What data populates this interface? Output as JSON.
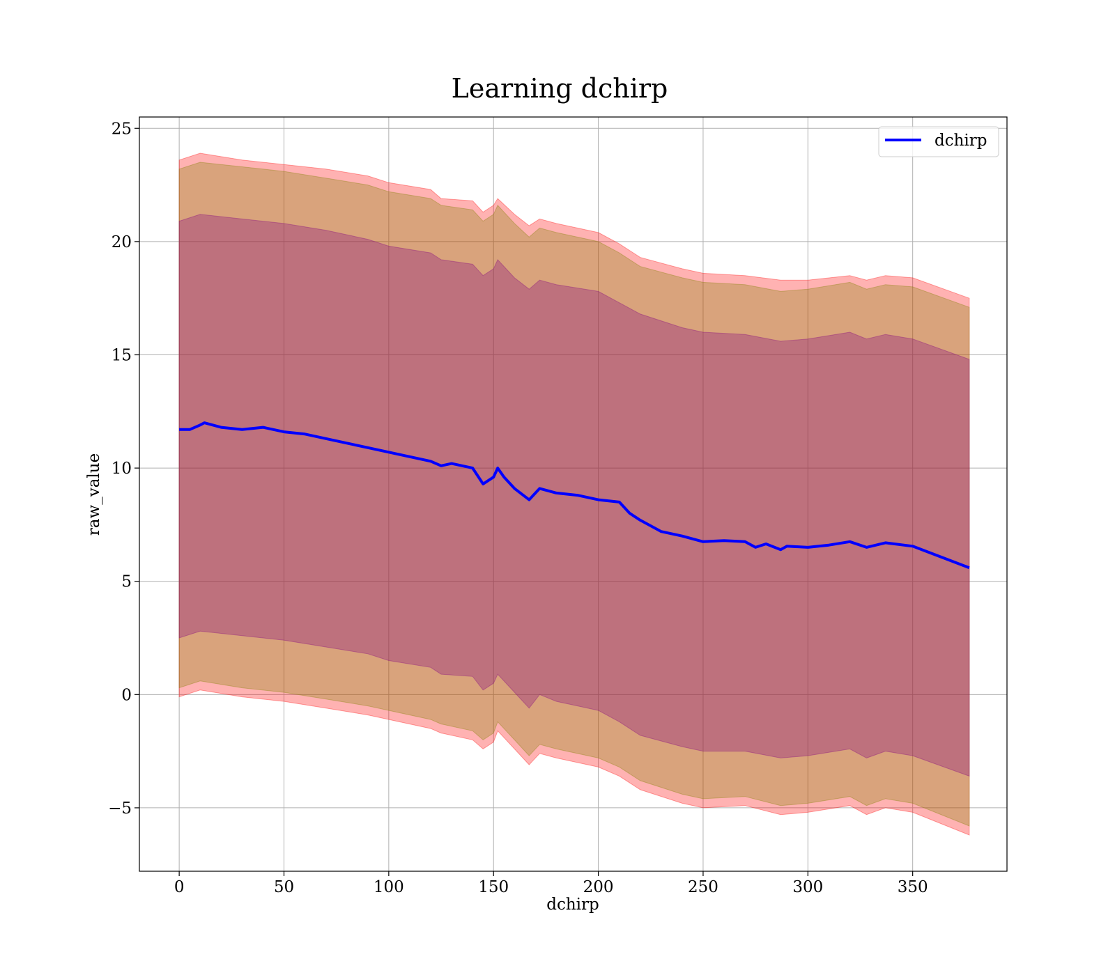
{
  "chart_data": {
    "type": "line",
    "title": "Learning dchirp",
    "xlabel": "dchirp",
    "ylabel": "raw_value",
    "xlim": [
      -19,
      395
    ],
    "ylim": [
      -7.8,
      25.5
    ],
    "xticks": [
      0,
      50,
      100,
      150,
      200,
      250,
      300,
      350
    ],
    "yticks": [
      -5,
      0,
      5,
      10,
      15,
      20,
      25
    ],
    "xtick_labels": [
      "0",
      "50",
      "100",
      "150",
      "200",
      "250",
      "300",
      "350"
    ],
    "ytick_labels": [
      "−5",
      "0",
      "5",
      "10",
      "15",
      "20",
      "25"
    ],
    "grid": true,
    "legend_position": "top-right",
    "series": [
      {
        "name": "dchirp",
        "color": "#0000ff",
        "x": [
          0,
          5,
          10,
          12,
          20,
          30,
          40,
          50,
          60,
          70,
          80,
          90,
          100,
          110,
          120,
          125,
          130,
          140,
          145,
          150,
          152,
          155,
          160,
          167,
          172,
          180,
          190,
          200,
          210,
          215,
          220,
          230,
          240,
          250,
          260,
          270,
          275,
          280,
          287,
          290,
          300,
          310,
          320,
          328,
          337,
          350,
          377
        ],
        "y": [
          11.7,
          11.7,
          11.9,
          12.0,
          11.8,
          11.7,
          11.8,
          11.6,
          11.5,
          11.3,
          11.1,
          10.9,
          10.7,
          10.5,
          10.3,
          10.1,
          10.2,
          10.0,
          9.3,
          9.6,
          10.0,
          9.6,
          9.1,
          8.6,
          9.1,
          8.9,
          8.8,
          8.6,
          8.5,
          8.0,
          7.7,
          7.2,
          7.0,
          6.75,
          6.8,
          6.75,
          6.5,
          6.65,
          6.4,
          6.55,
          6.5,
          6.6,
          6.75,
          6.5,
          6.7,
          6.55,
          5.6
        ]
      }
    ],
    "bands": [
      {
        "fill": "#ff0000",
        "opacity": 0.3,
        "x": [
          0,
          10,
          30,
          50,
          70,
          90,
          100,
          120,
          125,
          140,
          145,
          150,
          152,
          160,
          167,
          172,
          180,
          200,
          210,
          220,
          240,
          250,
          270,
          287,
          300,
          320,
          328,
          337,
          350,
          377
        ],
        "upper": [
          23.6,
          23.9,
          23.6,
          23.4,
          23.2,
          22.9,
          22.6,
          22.3,
          21.9,
          21.8,
          21.3,
          21.6,
          21.9,
          21.2,
          20.7,
          21.0,
          20.8,
          20.4,
          19.9,
          19.3,
          18.8,
          18.6,
          18.5,
          18.3,
          18.3,
          18.5,
          18.3,
          18.5,
          18.4,
          17.5
        ],
        "lower": [
          -0.1,
          0.2,
          -0.1,
          -0.3,
          -0.6,
          -0.9,
          -1.1,
          -1.5,
          -1.7,
          -2.0,
          -2.4,
          -2.1,
          -1.6,
          -2.4,
          -3.1,
          -2.6,
          -2.8,
          -3.2,
          -3.6,
          -4.2,
          -4.8,
          -5.0,
          -4.9,
          -5.3,
          -5.2,
          -4.9,
          -5.3,
          -5.0,
          -5.2,
          -6.2
        ]
      },
      {
        "fill": "#808000",
        "opacity": 0.3,
        "x": [
          0,
          10,
          30,
          50,
          70,
          90,
          100,
          120,
          125,
          140,
          145,
          150,
          152,
          160,
          167,
          172,
          180,
          200,
          210,
          220,
          240,
          250,
          270,
          287,
          300,
          320,
          328,
          337,
          350,
          377
        ],
        "upper": [
          23.2,
          23.5,
          23.3,
          23.1,
          22.8,
          22.5,
          22.2,
          21.9,
          21.6,
          21.4,
          20.9,
          21.2,
          21.6,
          20.8,
          20.2,
          20.6,
          20.4,
          20.0,
          19.5,
          18.9,
          18.4,
          18.2,
          18.1,
          17.8,
          17.9,
          18.2,
          17.9,
          18.1,
          18.0,
          17.1
        ],
        "lower": [
          0.3,
          0.6,
          0.3,
          0.1,
          -0.2,
          -0.5,
          -0.7,
          -1.1,
          -1.3,
          -1.6,
          -2.0,
          -1.7,
          -1.2,
          -2.0,
          -2.7,
          -2.2,
          -2.4,
          -2.8,
          -3.2,
          -3.8,
          -4.4,
          -4.6,
          -4.5,
          -4.9,
          -4.8,
          -4.5,
          -4.9,
          -4.6,
          -4.8,
          -5.8
        ]
      },
      {
        "fill": "#800080",
        "opacity": 0.3,
        "x": [
          0,
          10,
          30,
          50,
          70,
          90,
          100,
          120,
          125,
          140,
          145,
          150,
          152,
          160,
          167,
          172,
          180,
          200,
          210,
          220,
          240,
          250,
          270,
          287,
          300,
          320,
          328,
          337,
          350,
          377
        ],
        "upper": [
          20.9,
          21.2,
          21.0,
          20.8,
          20.5,
          20.1,
          19.8,
          19.5,
          19.2,
          19.0,
          18.5,
          18.8,
          19.2,
          18.4,
          17.9,
          18.3,
          18.1,
          17.8,
          17.3,
          16.8,
          16.2,
          16.0,
          15.9,
          15.6,
          15.7,
          16.0,
          15.7,
          15.9,
          15.7,
          14.8
        ],
        "lower": [
          2.5,
          2.8,
          2.6,
          2.4,
          2.1,
          1.8,
          1.5,
          1.2,
          0.9,
          0.8,
          0.2,
          0.5,
          0.9,
          0.1,
          -0.6,
          0.0,
          -0.3,
          -0.7,
          -1.2,
          -1.8,
          -2.3,
          -2.5,
          -2.5,
          -2.8,
          -2.7,
          -2.4,
          -2.8,
          -2.5,
          -2.7,
          -3.6
        ]
      }
    ]
  }
}
